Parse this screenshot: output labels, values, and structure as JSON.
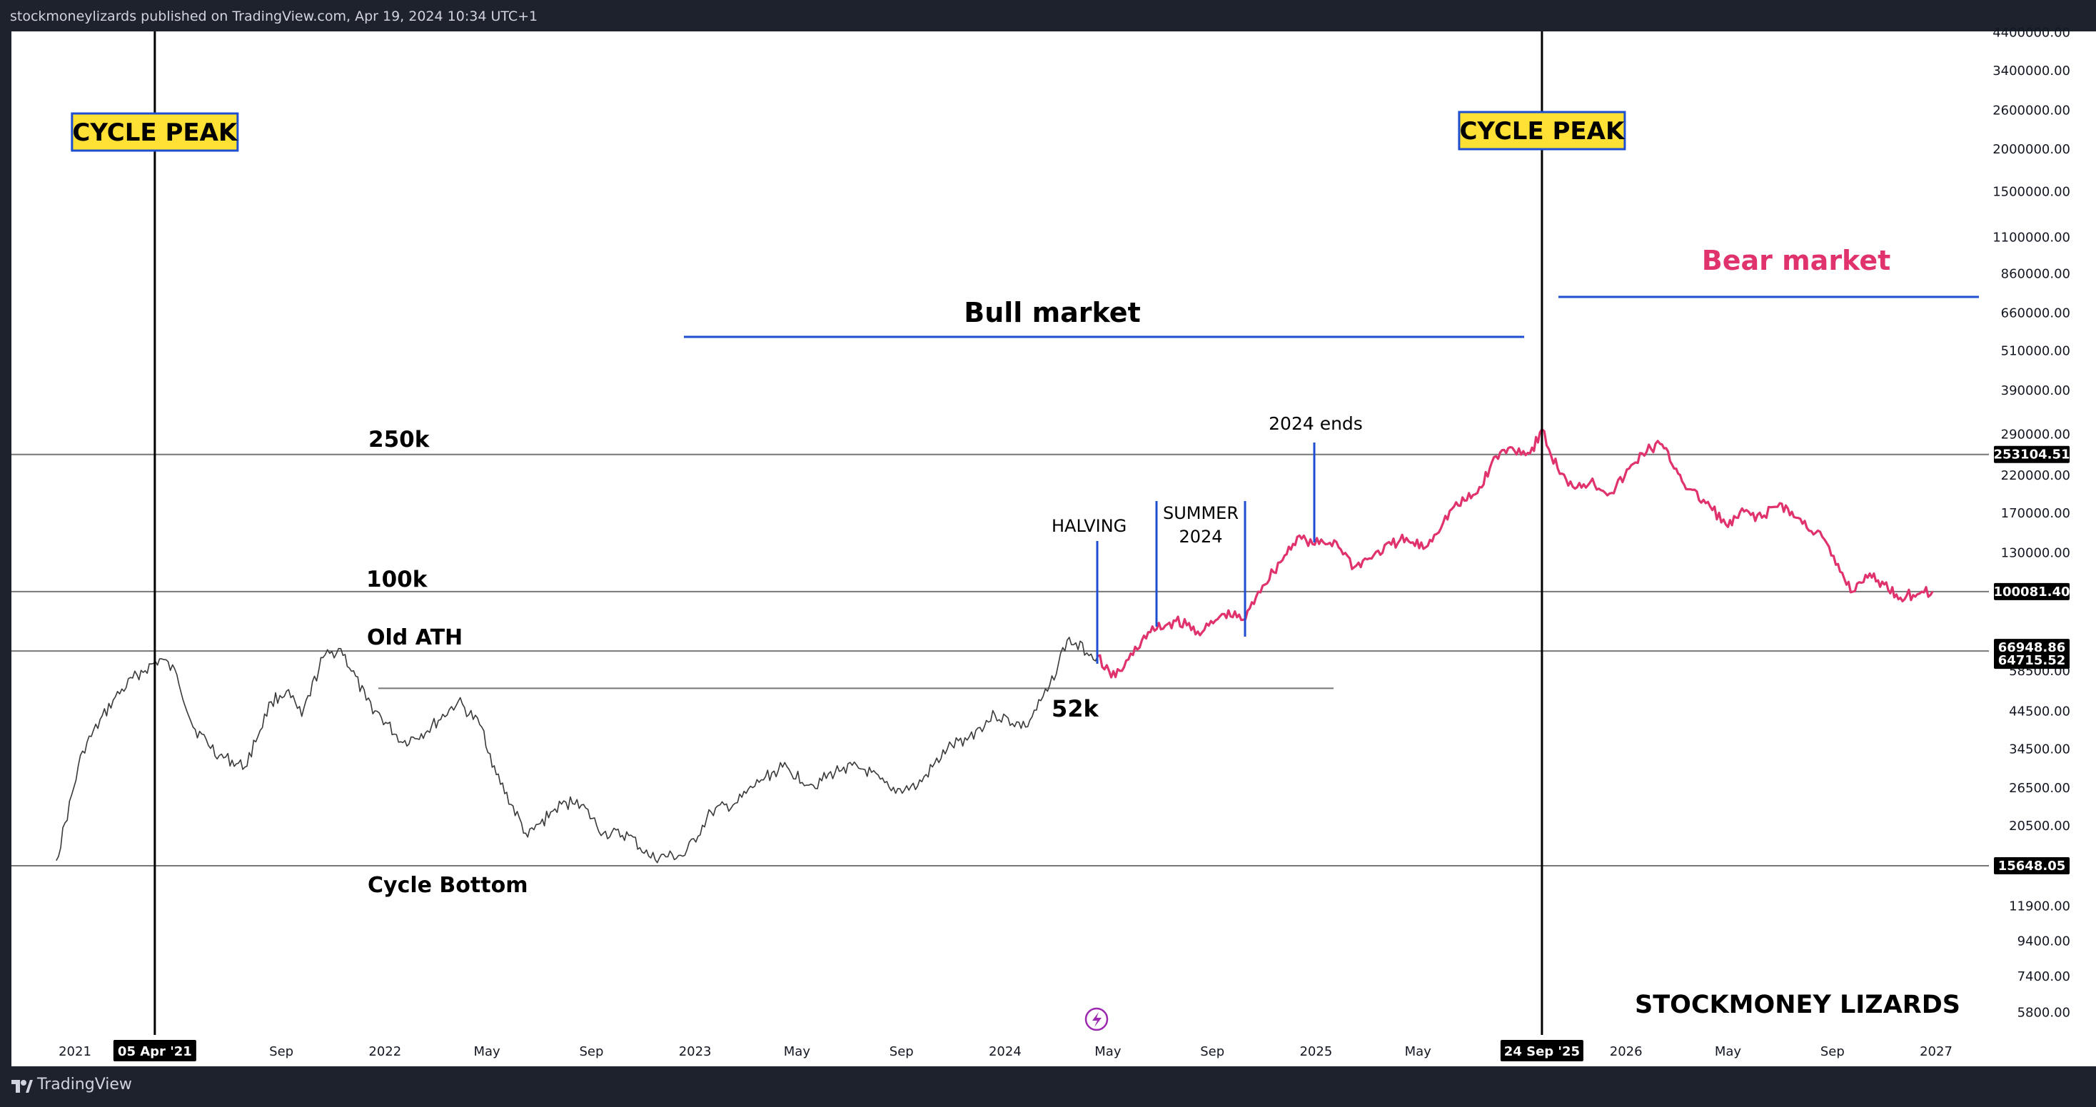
{
  "header": {
    "publish_line": "stockmoneylizards published on TradingView.com, Apr 19, 2024 10:34 UTC+1"
  },
  "footer": {
    "brand": "TradingView",
    "logo_icon": "tradingview-logo-icon"
  },
  "colors": {
    "background": "#1e222d",
    "plot": "#ffffff",
    "history": "#3a3a3a",
    "forecast": "#e0336e",
    "accent_line": "#1f4fd1",
    "badge_fill": "#ffe135",
    "badge_border": "#1f4fd1",
    "replay_icon": "#9c27b0"
  },
  "chart_data": {
    "type": "line",
    "scale": "log",
    "x_ticks": [
      "2021",
      "05 Apr '21",
      "Sep",
      "2022",
      "May",
      "Sep",
      "2023",
      "May",
      "Sep",
      "2024",
      "May",
      "Sep",
      "2025",
      "May",
      "24 Sep '25",
      "2026",
      "May",
      "Sep",
      "2027"
    ],
    "y_ticks": [
      "4400000.00",
      "3400000.00",
      "2600000.00",
      "2000000.00",
      "1500000.00",
      "1100000.00",
      "860000.00",
      "660000.00",
      "510000.00",
      "390000.00",
      "290000.00",
      "220000.00",
      "170000.00",
      "130000.00",
      "100000.00",
      "58500.00",
      "44500.00",
      "34500.00",
      "26500.00",
      "20500.00",
      "11900.00",
      "9400.00",
      "7400.00",
      "5800.00"
    ],
    "price_labels": [
      "253104.51",
      "100081.40",
      "66948.86",
      "64715.52",
      "15648.05"
    ],
    "ylim": [
      5000,
      4500000
    ],
    "xlim": [
      "2020-12-10",
      "2027-03-10"
    ],
    "series": [
      {
        "name": "",
        "color": "#3a3a3a",
        "points": [
          [
            "2020-12-10",
            16200
          ],
          [
            "2021-01-10",
            34000
          ],
          [
            "2021-02-15",
            48000
          ],
          [
            "2021-03-15",
            57000
          ],
          [
            "2021-04-13",
            63500
          ],
          [
            "2021-05-01",
            57000
          ],
          [
            "2021-05-20",
            40000
          ],
          [
            "2021-06-20",
            33000
          ],
          [
            "2021-07-20",
            30500
          ],
          [
            "2021-08-20",
            47500
          ],
          [
            "2021-09-07",
            51000
          ],
          [
            "2021-09-25",
            43000
          ],
          [
            "2021-10-20",
            64000
          ],
          [
            "2021-11-10",
            68000
          ],
          [
            "2021-12-10",
            48000
          ],
          [
            "2022-01-22",
            36000
          ],
          [
            "2022-02-20",
            39000
          ],
          [
            "2022-03-28",
            47500
          ],
          [
            "2022-04-25",
            40000
          ],
          [
            "2022-05-12",
            29000
          ],
          [
            "2022-06-18",
            19000
          ],
          [
            "2022-07-20",
            23000
          ],
          [
            "2022-08-15",
            24500
          ],
          [
            "2022-09-15",
            19500
          ],
          [
            "2022-10-15",
            19200
          ],
          [
            "2022-11-10",
            16500
          ],
          [
            "2022-12-20",
            16800
          ],
          [
            "2023-01-20",
            22500
          ],
          [
            "2023-02-20",
            24000
          ],
          [
            "2023-03-20",
            28000
          ],
          [
            "2023-04-14",
            30500
          ],
          [
            "2023-05-20",
            27000
          ],
          [
            "2023-06-25",
            30500
          ],
          [
            "2023-07-20",
            30000
          ],
          [
            "2023-08-20",
            26000
          ],
          [
            "2023-09-20",
            26800
          ],
          [
            "2023-10-25",
            34500
          ],
          [
            "2023-11-20",
            37500
          ],
          [
            "2023-12-20",
            43500
          ],
          [
            "2024-01-25",
            40000
          ],
          [
            "2024-02-20",
            51000
          ],
          [
            "2024-03-14",
            72000
          ],
          [
            "2024-04-19",
            64700
          ]
        ]
      },
      {
        "name": "",
        "color": "#e0336e",
        "points": [
          [
            "2024-04-19",
            64700
          ],
          [
            "2024-05-05",
            56000
          ],
          [
            "2024-05-20",
            60000
          ],
          [
            "2024-06-10",
            72000
          ],
          [
            "2024-06-20",
            76000
          ],
          [
            "2024-07-20",
            82000
          ],
          [
            "2024-08-20",
            76000
          ],
          [
            "2024-09-15",
            86000
          ],
          [
            "2024-10-10",
            83000
          ],
          [
            "2024-10-25",
            100000
          ],
          [
            "2024-11-20",
            122000
          ],
          [
            "2024-12-10",
            145000
          ],
          [
            "2024-12-28",
            138000
          ],
          [
            "2025-01-25",
            140000
          ],
          [
            "2025-02-15",
            118000
          ],
          [
            "2025-03-10",
            128000
          ],
          [
            "2025-04-10",
            142000
          ],
          [
            "2025-05-10",
            135000
          ],
          [
            "2025-06-10",
            175000
          ],
          [
            "2025-07-10",
            195000
          ],
          [
            "2025-08-01",
            250000
          ],
          [
            "2025-08-20",
            265000
          ],
          [
            "2025-09-10",
            255000
          ],
          [
            "2025-09-24",
            300000
          ],
          [
            "2025-10-05",
            250000
          ],
          [
            "2025-10-25",
            205000
          ],
          [
            "2025-11-20",
            210000
          ],
          [
            "2025-12-15",
            195000
          ],
          [
            "2026-01-20",
            255000
          ],
          [
            "2026-02-10",
            272000
          ],
          [
            "2026-03-01",
            230000
          ],
          [
            "2026-03-15",
            200000
          ],
          [
            "2026-04-10",
            178000
          ],
          [
            "2026-05-01",
            155000
          ],
          [
            "2026-05-20",
            172000
          ],
          [
            "2026-06-10",
            165000
          ],
          [
            "2026-07-01",
            182000
          ],
          [
            "2026-07-20",
            165000
          ],
          [
            "2026-08-20",
            145000
          ],
          [
            "2026-09-05",
            120000
          ],
          [
            "2026-09-25",
            100000
          ],
          [
            "2026-10-10",
            112000
          ],
          [
            "2026-11-01",
            105000
          ],
          [
            "2026-11-20",
            96000
          ],
          [
            "2026-12-15",
            100000
          ],
          [
            "2026-12-28",
            100081
          ]
        ]
      }
    ],
    "annotations": {
      "cycle_peak": "CYCLE PEAK",
      "bull_market": "Bull market",
      "bear_market": "Bear market",
      "level_250k": "250k",
      "level_100k": "100k",
      "old_ath": "Old ATH",
      "level_52k": "52k",
      "cycle_bottom": "Cycle Bottom",
      "halving": "HALVING",
      "summer_line1": "SUMMER",
      "summer_line2": "2024",
      "ends_2024": "2024 ends",
      "watermark": "STOCKMONEY LIZARDS"
    }
  }
}
